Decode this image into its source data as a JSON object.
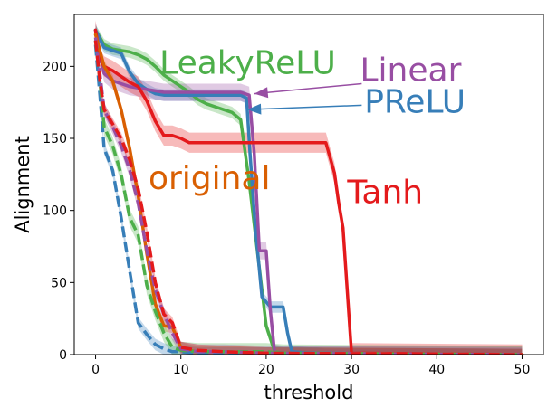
{
  "chart_data": {
    "type": "line",
    "xlabel": "threshold",
    "ylabel": "Alignment",
    "xlim": [
      -2.5,
      52.5
    ],
    "ylim": [
      0,
      236
    ],
    "xticks": [
      0,
      10,
      20,
      30,
      40,
      50
    ],
    "yticks": [
      0,
      50,
      100,
      150,
      200
    ],
    "grid": false,
    "legend": "none",
    "colors": {
      "green": "#4daf4a",
      "orange": "#d95f02",
      "red": "#e41a1c",
      "blue": "#377eb8",
      "purple": "#984ea3"
    },
    "annotations": [
      {
        "text": "LeakyReLU",
        "color": "#4daf4a",
        "x": 7.5,
        "y": 195
      },
      {
        "text": "Linear",
        "color": "#984ea3",
        "x": 31.0,
        "y": 190
      },
      {
        "text": "PReLU",
        "color": "#377eb8",
        "x": 31.5,
        "y": 168
      },
      {
        "text": "original",
        "color": "#d95f02",
        "x": 6.2,
        "y": 115
      },
      {
        "text": "Tanh",
        "color": "#e41a1c",
        "x": 29.5,
        "y": 105
      }
    ],
    "arrows": [
      {
        "color": "#984ea3",
        "from": [
          31.2,
          188
        ],
        "to": [
          18.6,
          181
        ]
      },
      {
        "color": "#377eb8",
        "from": [
          31.2,
          173
        ],
        "to": [
          17.8,
          170
        ]
      }
    ],
    "series": [
      {
        "color": "#4daf4a",
        "dash": false,
        "band": 4,
        "x": [
          0,
          1,
          2,
          3,
          4,
          5,
          6,
          7,
          8,
          9,
          10,
          11,
          12,
          13,
          14,
          15,
          16,
          17,
          18,
          19,
          20,
          21,
          22,
          50
        ],
        "y": [
          225,
          215,
          212,
          211,
          210,
          208,
          205,
          200,
          194,
          190,
          186,
          182,
          177,
          174,
          172,
          170,
          168,
          163,
          120,
          70,
          20,
          2,
          1,
          0
        ]
      },
      {
        "color": "#377eb8",
        "dash": false,
        "band": 4,
        "x": [
          0,
          1,
          2,
          3,
          4,
          5,
          6,
          7,
          8,
          12,
          15,
          17,
          17.7,
          18.1,
          18.7,
          19.5,
          20.5,
          22,
          22.5,
          23,
          25,
          50
        ],
        "y": [
          225,
          213,
          211,
          209,
          196,
          188,
          184,
          181,
          180,
          180,
          180,
          180,
          178,
          140,
          90,
          40,
          33,
          33,
          15,
          2,
          1,
          0
        ]
      },
      {
        "color": "#984ea3",
        "dash": false,
        "band": 6,
        "x": [
          0,
          1,
          2,
          3,
          4,
          5,
          6,
          7,
          8,
          10,
          14,
          17,
          18,
          18.6,
          19.2,
          20,
          20.5,
          21,
          22,
          50
        ],
        "y": [
          225,
          195,
          190,
          188,
          186,
          185,
          184,
          183,
          182,
          182,
          182,
          182,
          180,
          140,
          72,
          72,
          30,
          1,
          0,
          0
        ]
      },
      {
        "color": "#e41a1c",
        "dash": false,
        "band": 7,
        "x": [
          0,
          0.5,
          1,
          2,
          3,
          4,
          5,
          6,
          7,
          8,
          9,
          10,
          11,
          12,
          15,
          20,
          25,
          27,
          28,
          28.5,
          29,
          30,
          50
        ],
        "y": [
          225,
          205,
          200,
          197,
          193,
          189,
          186,
          176,
          162,
          152,
          152,
          150,
          147,
          147,
          147,
          147,
          147,
          147,
          126,
          105,
          88,
          1,
          0
        ]
      },
      {
        "color": "#d95f02",
        "dash": false,
        "band": 4,
        "x": [
          0,
          1,
          2,
          3,
          4,
          5,
          6,
          7,
          8,
          9,
          10,
          11,
          12,
          15,
          20,
          50
        ],
        "y": [
          222,
          200,
          190,
          170,
          143,
          110,
          70,
          35,
          20,
          19,
          5,
          3,
          2,
          2,
          1,
          0
        ]
      },
      {
        "color": "#377eb8",
        "dash": true,
        "band": 4,
        "x": [
          0,
          0.5,
          1,
          2,
          3,
          4,
          5,
          6,
          7,
          8,
          9,
          10,
          12,
          15,
          20,
          26,
          27,
          50
        ],
        "y": [
          215,
          180,
          143,
          128,
          95,
          58,
          22,
          14,
          7,
          4,
          2,
          2,
          1,
          1,
          1,
          1,
          0,
          0
        ]
      },
      {
        "color": "#4daf4a",
        "dash": true,
        "band": 6,
        "x": [
          0,
          0.5,
          1,
          2,
          3,
          4,
          5,
          6,
          7,
          8,
          9,
          10,
          12,
          15,
          20,
          22,
          50
        ],
        "y": [
          218,
          190,
          158,
          145,
          125,
          95,
          83,
          48,
          30,
          15,
          5,
          3,
          2,
          2,
          2,
          1,
          0
        ]
      },
      {
        "color": "#984ea3",
        "dash": true,
        "band": 5,
        "x": [
          0,
          0.5,
          1,
          2,
          3,
          4,
          5,
          6,
          7,
          8,
          9,
          10,
          12,
          15,
          20,
          50
        ],
        "y": [
          220,
          195,
          170,
          158,
          145,
          128,
          105,
          72,
          45,
          28,
          15,
          4,
          2,
          2,
          1,
          0
        ]
      },
      {
        "color": "#e41a1c",
        "dash": true,
        "band": 4,
        "x": [
          0,
          0.5,
          1,
          2,
          3,
          4,
          5,
          6,
          7,
          8,
          9,
          10,
          12,
          15,
          20,
          50
        ],
        "y": [
          218,
          190,
          170,
          160,
          150,
          135,
          115,
          85,
          50,
          28,
          22,
          5,
          3,
          2,
          1,
          0
        ]
      }
    ]
  }
}
